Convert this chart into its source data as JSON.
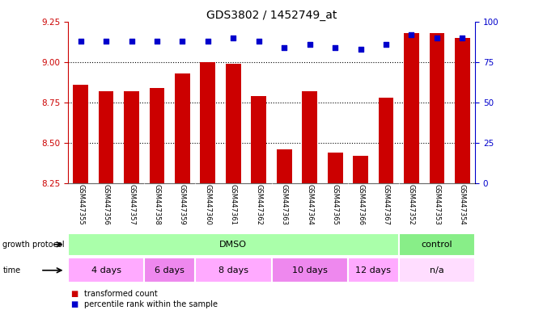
{
  "title": "GDS3802 / 1452749_at",
  "samples": [
    "GSM447355",
    "GSM447356",
    "GSM447357",
    "GSM447358",
    "GSM447359",
    "GSM447360",
    "GSM447361",
    "GSM447362",
    "GSM447363",
    "GSM447364",
    "GSM447365",
    "GSM447366",
    "GSM447367",
    "GSM447352",
    "GSM447353",
    "GSM447354"
  ],
  "transformed_counts": [
    8.86,
    8.82,
    8.82,
    8.84,
    8.93,
    9.0,
    8.99,
    8.79,
    8.46,
    8.82,
    8.44,
    8.42,
    8.78,
    9.18,
    9.18,
    9.15
  ],
  "percentile_ranks": [
    88,
    88,
    88,
    88,
    88,
    88,
    90,
    88,
    84,
    86,
    84,
    83,
    86,
    92,
    90,
    90
  ],
  "ylim_left": [
    8.25,
    9.25
  ],
  "ylim_right": [
    0,
    100
  ],
  "yticks_left": [
    8.25,
    8.5,
    8.75,
    9.0,
    9.25
  ],
  "yticks_right": [
    0,
    25,
    50,
    75,
    100
  ],
  "bar_color": "#cc0000",
  "dot_color": "#0000cc",
  "title_fontsize": 10,
  "axis_label_color_left": "#cc0000",
  "axis_label_color_right": "#0000cc",
  "growth_protocol_label": "growth protocol",
  "growth_protocol_groups": [
    {
      "label": "DMSO",
      "start": 0,
      "end": 13,
      "color": "#aaffaa"
    },
    {
      "label": "control",
      "start": 13,
      "end": 16,
      "color": "#88ee88"
    }
  ],
  "time_label": "time",
  "time_groups": [
    {
      "label": "4 days",
      "start": 0,
      "end": 3,
      "color": "#ffaaff"
    },
    {
      "label": "6 days",
      "start": 3,
      "end": 5,
      "color": "#ee88ee"
    },
    {
      "label": "8 days",
      "start": 5,
      "end": 8,
      "color": "#ffaaff"
    },
    {
      "label": "10 days",
      "start": 8,
      "end": 11,
      "color": "#ee88ee"
    },
    {
      "label": "12 days",
      "start": 11,
      "end": 13,
      "color": "#ffaaff"
    },
    {
      "label": "n/a",
      "start": 13,
      "end": 16,
      "color": "#ffddff"
    }
  ],
  "legend_items": [
    {
      "label": "transformed count",
      "color": "#cc0000"
    },
    {
      "label": "percentile rank within the sample",
      "color": "#0000cc"
    }
  ],
  "bg_color": "#ffffff",
  "tick_label_area_color": "#cccccc",
  "bar_width": 0.6,
  "group_dividers": [
    3,
    5,
    8,
    11,
    13
  ]
}
